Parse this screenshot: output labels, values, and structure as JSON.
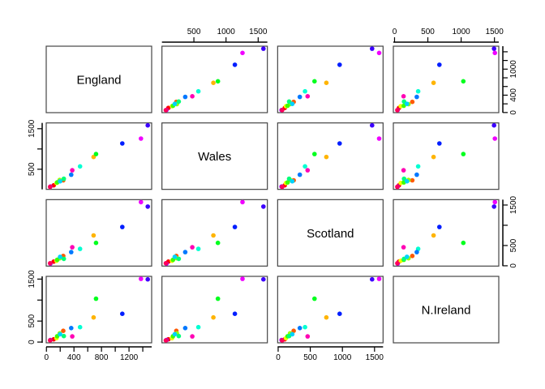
{
  "chart_data": {
    "type": "scatter",
    "subtype": "pairs-scatterplot-matrix",
    "variables": [
      "England",
      "Wales",
      "Scotland",
      "N.Ireland"
    ],
    "legend": "none",
    "grid": "off",
    "marker": "filled-circle",
    "points": [
      {
        "color": "#FF0000",
        "values": [
          105,
          103,
          103,
          66
        ]
      },
      {
        "color": "#FF5A00",
        "values": [
          245,
          227,
          242,
          267
        ]
      },
      {
        "color": "#FFB400",
        "values": [
          685,
          803,
          750,
          586
        ]
      },
      {
        "color": "#F0FF00",
        "values": [
          147,
          160,
          122,
          93
        ]
      },
      {
        "color": "#96FF00",
        "values": [
          193,
          235,
          184,
          209
        ]
      },
      {
        "color": "#3CFF00",
        "values": [
          156,
          175,
          147,
          139
        ]
      },
      {
        "color": "#00FF1E",
        "values": [
          720,
          874,
          566,
          1033
        ]
      },
      {
        "color": "#00FF78",
        "values": [
          253,
          265,
          171,
          143
        ]
      },
      {
        "color": "#00FFD2",
        "values": [
          488,
          570,
          418,
          355
        ]
      },
      {
        "color": "#00D2FF",
        "values": [
          198,
          203,
          220,
          187
        ]
      },
      {
        "color": "#0078FF",
        "values": [
          360,
          365,
          337,
          334
        ]
      },
      {
        "color": "#001EFF",
        "values": [
          1102,
          1137,
          957,
          674
        ]
      },
      {
        "color": "#3C00FF",
        "values": [
          1472,
          1582,
          1462,
          1494
        ]
      },
      {
        "color": "#9600FF",
        "values": [
          57,
          73,
          53,
          47
        ]
      },
      {
        "color": "#F000FF",
        "values": [
          1374,
          1256,
          1572,
          1506
        ]
      },
      {
        "color": "#FF00B4",
        "values": [
          375,
          475,
          458,
          135
        ]
      },
      {
        "color": "#FF005A",
        "values": [
          54,
          64,
          62,
          41
        ]
      }
    ],
    "axis_ranges": {
      "England": [
        -3,
        1529
      ],
      "Wales": [
        3,
        1643
      ],
      "Scotland": [
        -8,
        1633
      ],
      "N.Ireland": [
        -18,
        1565
      ]
    },
    "axis_ticks": {
      "England": [
        0,
        200,
        400,
        600,
        800,
        1000,
        1200,
        1400
      ],
      "Wales": [
        500,
        1000,
        1500
      ],
      "Scotland": [
        0,
        500,
        1000,
        1500
      ],
      "N.Ireland": [
        0,
        500,
        1000,
        1500
      ]
    },
    "labeled_ticks": {
      "top": {
        "Wales": [
          500,
          1000,
          1500
        ],
        "N.Ireland": [
          0,
          500,
          1000,
          1500
        ]
      },
      "bottom": {
        "England": [
          0,
          400,
          800,
          1200
        ],
        "Scotland": [
          0,
          500,
          1000,
          1500
        ]
      },
      "left": {
        "Wales": [
          500,
          1500
        ],
        "N.Ireland": [
          0,
          500,
          1500
        ]
      },
      "right": {
        "England": [
          0,
          400,
          1000
        ],
        "Scotland": [
          0,
          500,
          1500
        ]
      }
    },
    "colors": {
      "panel_border": "#454545",
      "axis": "#000000",
      "text": "#000000",
      "background": "#ffffff"
    }
  }
}
